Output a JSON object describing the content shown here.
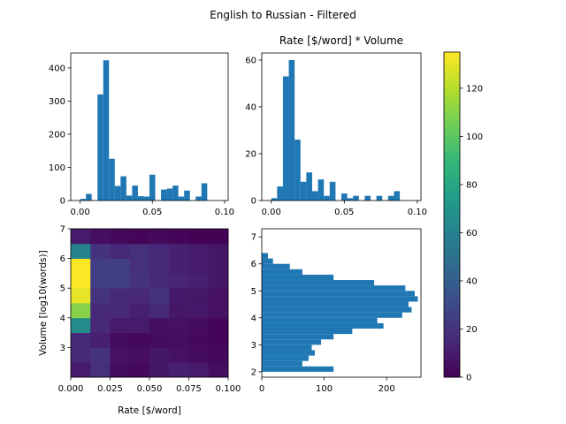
{
  "figure": {
    "suptitle": "English to Russian - Filtered"
  },
  "colors": {
    "bar": "#1f77b4",
    "colormap": [
      "#440154",
      "#482878",
      "#3e4989",
      "#31688e",
      "#26828e",
      "#1f9e89",
      "#35b779",
      "#6ece58",
      "#b5de2b",
      "#fde725"
    ]
  },
  "chart_data": [
    {
      "id": "hist-rate",
      "type": "bar",
      "title": "",
      "xlabel": "",
      "ylabel": "",
      "bin_edges": [
        0.0,
        0.004,
        0.008,
        0.012,
        0.016,
        0.02,
        0.024,
        0.028,
        0.032,
        0.036,
        0.04,
        0.044,
        0.048,
        0.052,
        0.056,
        0.06,
        0.064,
        0.068,
        0.072,
        0.076,
        0.08,
        0.084,
        0.088,
        0.092,
        0.096,
        0.1
      ],
      "values": [
        5,
        20,
        0,
        320,
        423,
        126,
        44,
        73,
        15,
        45,
        13,
        12,
        78,
        0,
        33,
        36,
        45,
        12,
        30,
        0,
        12,
        52,
        0,
        0,
        0
      ],
      "xlim": [
        -0.0065,
        0.1025
      ],
      "ylim": [
        0,
        445
      ],
      "xticks": [
        0.0,
        0.05,
        0.1
      ],
      "xtick_labels": [
        "0.00",
        "0.05",
        "0.10"
      ],
      "yticks": [
        0,
        100,
        200,
        300,
        400
      ],
      "ytick_labels": [
        "0",
        "100",
        "200",
        "300",
        "400"
      ]
    },
    {
      "id": "hist-rate-volume",
      "type": "bar",
      "title": "Rate [$/word] * Volume",
      "xlabel": "",
      "ylabel": "",
      "bin_edges": [
        0.0,
        0.004,
        0.008,
        0.012,
        0.016,
        0.02,
        0.024,
        0.028,
        0.032,
        0.036,
        0.04,
        0.044,
        0.048,
        0.052,
        0.056,
        0.06,
        0.064,
        0.068,
        0.072,
        0.076,
        0.08,
        0.084,
        0.088,
        0.092,
        0.096,
        0.1
      ],
      "values": [
        1,
        6,
        53,
        60,
        26,
        8,
        12,
        4,
        9,
        2,
        8,
        0,
        3,
        1,
        2,
        0,
        2,
        0,
        2,
        0,
        2,
        4,
        0,
        0,
        0
      ],
      "xlim": [
        -0.0065,
        0.1025
      ],
      "ylim": [
        0,
        63
      ],
      "xticks": [
        0.0,
        0.05,
        0.1
      ],
      "xtick_labels": [
        "0.00",
        "0.05",
        "0.10"
      ],
      "yticks": [
        0,
        20,
        40,
        60
      ],
      "ytick_labels": [
        "0",
        "20",
        "40",
        "60"
      ]
    },
    {
      "id": "hist2d-rate-volume",
      "type": "heatmap",
      "title": "",
      "xlabel": "Rate [$/word]",
      "ylabel": "Volume [log10(words)]",
      "x_edges": [
        0.0,
        0.0125,
        0.025,
        0.0375,
        0.05,
        0.0625,
        0.075,
        0.0875,
        0.1
      ],
      "y_edges": [
        2.0,
        2.5,
        3.0,
        3.5,
        4.0,
        4.5,
        5.0,
        5.5,
        6.0,
        6.5,
        7.0
      ],
      "z_rows_bottom_to_top": [
        [
          10,
          18,
          4,
          3,
          8,
          12,
          10,
          5
        ],
        [
          15,
          20,
          6,
          5,
          8,
          6,
          4,
          3
        ],
        [
          15,
          12,
          4,
          3,
          4,
          5,
          3,
          2
        ],
        [
          65,
          15,
          10,
          10,
          5,
          6,
          4,
          2
        ],
        [
          110,
          15,
          15,
          12,
          15,
          8,
          9,
          6
        ],
        [
          130,
          20,
          15,
          15,
          20,
          9,
          8,
          6
        ],
        [
          135,
          25,
          25,
          20,
          15,
          14,
          12,
          8
        ],
        [
          135,
          25,
          25,
          18,
          15,
          12,
          10,
          8
        ],
        [
          60,
          20,
          15,
          18,
          15,
          12,
          10,
          8
        ],
        [
          10,
          5,
          3,
          2,
          3,
          2,
          1,
          1
        ]
      ],
      "xlim": [
        0.0,
        0.1
      ],
      "ylim": [
        2.0,
        7.0
      ],
      "xticks": [
        0.0,
        0.025,
        0.05,
        0.075,
        0.1
      ],
      "xtick_labels": [
        "0.000",
        "0.025",
        "0.050",
        "0.075",
        "0.100"
      ],
      "yticks": [
        3,
        4,
        5,
        6,
        7
      ],
      "ytick_labels": [
        "3",
        "4",
        "5",
        "6",
        "7"
      ]
    },
    {
      "id": "hist-volume",
      "type": "bar",
      "orientation": "horizontal",
      "title": "",
      "xlabel": "",
      "ylabel": "",
      "bin_edges": [
        2.0,
        2.2,
        2.4,
        2.6,
        2.8,
        3.0,
        3.2,
        3.4,
        3.6,
        3.8,
        4.0,
        4.2,
        4.4,
        4.6,
        4.8,
        5.0,
        5.2,
        5.4,
        5.6,
        5.8,
        6.0,
        6.2,
        6.4,
        6.6,
        6.8,
        7.0
      ],
      "values": [
        115,
        65,
        75,
        85,
        80,
        95,
        115,
        145,
        195,
        185,
        225,
        240,
        235,
        250,
        245,
        230,
        180,
        115,
        65,
        45,
        18,
        10,
        0,
        0,
        0
      ],
      "xlim": [
        0,
        255
      ],
      "ylim": [
        1.8,
        7.3
      ],
      "xticks": [
        0,
        100,
        200
      ],
      "xtick_labels": [
        "0",
        "100",
        "200"
      ],
      "yticks": [
        2,
        3,
        4,
        5,
        6,
        7
      ],
      "ytick_labels": [
        "2",
        "3",
        "4",
        "5",
        "6",
        "7"
      ]
    }
  ],
  "colorbar": {
    "vmin": 0,
    "vmax": 135,
    "ticks": [
      0,
      20,
      40,
      60,
      80,
      100,
      120
    ],
    "tick_labels": [
      "0",
      "20",
      "40",
      "60",
      "80",
      "100",
      "120"
    ]
  }
}
